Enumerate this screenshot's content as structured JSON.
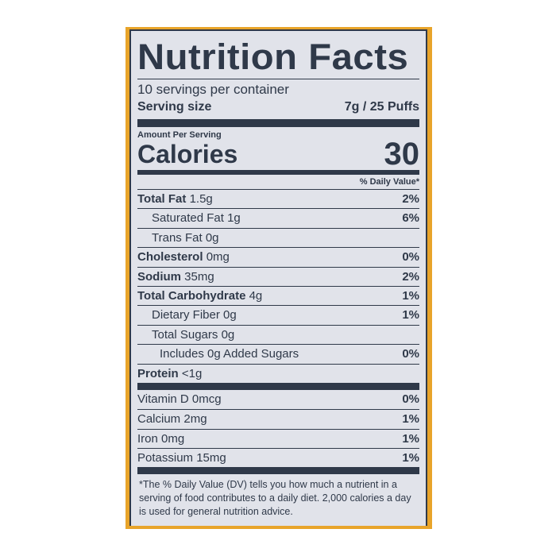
{
  "title": "Nutrition Facts",
  "servings_per_container": "10 servings per container",
  "serving_size_label": "Serving size",
  "serving_size_value": "7g / 25 Puffs",
  "amount_per_serving": "Amount Per Serving",
  "calories_label": "Calories",
  "calories_value": "30",
  "daily_value_header": "% Daily Value*",
  "nutrients": [
    {
      "name": "Total Fat",
      "amount": "1.5g",
      "dv": "2%"
    },
    {
      "name": "Saturated Fat",
      "amount": "1g",
      "dv": "6%"
    },
    {
      "name": "Trans Fat",
      "amount": "0g",
      "dv": ""
    },
    {
      "name": "Cholesterol",
      "amount": "0mg",
      "dv": "0%"
    },
    {
      "name": "Sodium",
      "amount": "35mg",
      "dv": "2%"
    },
    {
      "name": "Total Carbohydrate",
      "amount": "4g",
      "dv": "1%"
    },
    {
      "name": "Dietary Fiber",
      "amount": "0g",
      "dv": "1%"
    },
    {
      "name": "Total Sugars",
      "amount": "0g",
      "dv": ""
    },
    {
      "name": "Includes 0g Added Sugars",
      "amount": "",
      "dv": "0%"
    },
    {
      "name": "Protein",
      "amount": "<1g",
      "dv": ""
    }
  ],
  "vitamins": [
    {
      "name": "Vitamin D",
      "amount": "0mcg",
      "dv": "0%"
    },
    {
      "name": "Calcium",
      "amount": "2mg",
      "dv": "1%"
    },
    {
      "name": "Iron",
      "amount": "0mg",
      "dv": "1%"
    },
    {
      "name": "Potassium",
      "amount": "15mg",
      "dv": "1%"
    }
  ],
  "footnote": "*The % Daily Value (DV) tells you how much a nutrient in a serving of food contributes to a daily diet. 2,000 calories a day is used for general nutrition advice."
}
